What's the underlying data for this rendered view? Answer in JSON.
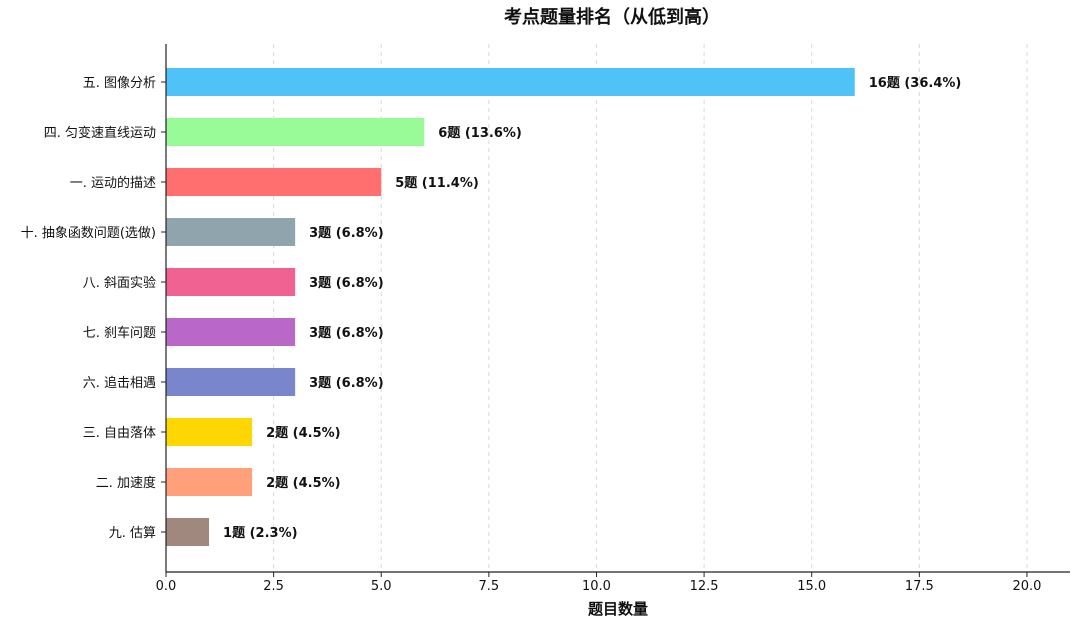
{
  "chart_data": {
    "type": "bar",
    "orientation": "horizontal",
    "title": "考点题量排名（从低到高）",
    "xlabel": "题目数量",
    "ylabel": "",
    "xlim": [
      0,
      21
    ],
    "xticks": [
      "0.0",
      "2.5",
      "5.0",
      "7.5",
      "10.0",
      "12.5",
      "15.0",
      "17.5",
      "20.0"
    ],
    "xtick_values": [
      0,
      2.5,
      5,
      7.5,
      10,
      12.5,
      15,
      17.5,
      20
    ],
    "grid": "vertical-dashed",
    "categories": [
      "五. 图像分析",
      "四. 匀变速直线运动",
      "一. 运动的描述",
      "十. 抽象函数问题(选做)",
      "八. 斜面实验",
      "七. 刹车问题",
      "六. 追击相遇",
      "三. 自由落体",
      "二. 加速度",
      "九. 估算"
    ],
    "values": [
      16,
      6,
      5,
      3,
      3,
      3,
      3,
      2,
      2,
      1
    ],
    "value_labels": [
      "16题 (36.4%)",
      "6题 (13.6%)",
      "5题 (11.4%)",
      "3题 (6.8%)",
      "3题 (6.8%)",
      "3题 (6.8%)",
      "3题 (6.8%)",
      "2题 (4.5%)",
      "2题 (4.5%)",
      "1题 (2.3%)"
    ],
    "colors": [
      "#4FC3F7",
      "#98FB98",
      "#FF6F6F",
      "#90A4AE",
      "#F06292",
      "#BA68C8",
      "#7986CB",
      "#FFD700",
      "#FFA07A",
      "#A1887F"
    ]
  }
}
